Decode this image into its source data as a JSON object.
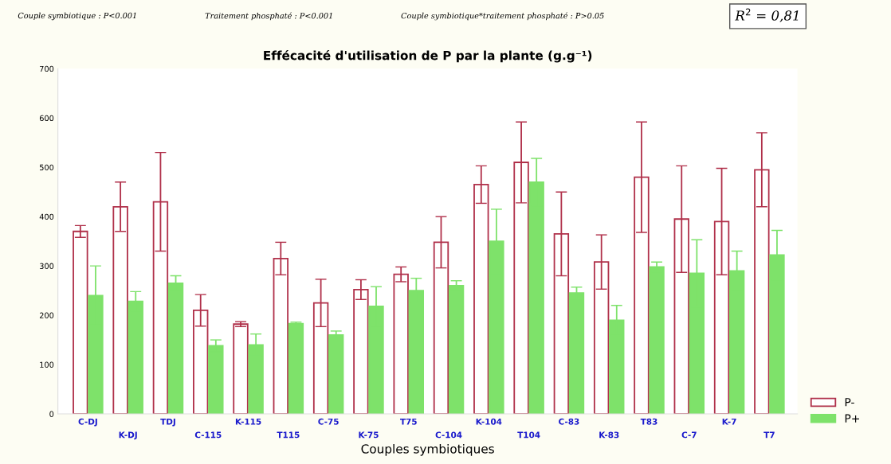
{
  "chart_data": {
    "type": "bar",
    "title": "Effécacité d'utilisation de P par la plante (g.g⁻¹)",
    "xlabel": "Couples symbiotiques",
    "annotations": [
      "Couple symbiotique : P<0.001",
      "Traitement phosphaté : P<0.001",
      "Couple symbiotique*traitement phosphaté : P>0.05",
      "R$^{2}$ = 0,81"
    ],
    "categories": [
      "C-DJ",
      "K-DJ",
      "TDJ",
      "C-115",
      "K-115",
      "T115",
      "C-75",
      "K-75",
      "T75",
      "C-104",
      "K-104",
      "T104",
      "C-83",
      "K-83",
      "T83",
      "C-7",
      "K-7",
      "T7"
    ],
    "series": [
      {
        "name": "P-",
        "color": "#b0304a",
        "values": [
          370,
          420,
          430,
          210,
          182,
          315,
          225,
          252,
          283,
          348,
          465,
          510,
          365,
          308,
          480,
          395,
          390,
          495
        ],
        "errors": [
          12,
          50,
          100,
          32,
          5,
          33,
          48,
          20,
          15,
          52,
          38,
          82,
          85,
          55,
          112,
          108,
          108,
          75
        ]
      },
      {
        "name": "P+",
        "color": "#7ee26a",
        "values": [
          240,
          228,
          265,
          138,
          140,
          183,
          160,
          218,
          250,
          260,
          350,
          470,
          245,
          190,
          298,
          285,
          290,
          322
        ],
        "errors": [
          60,
          20,
          15,
          12,
          22,
          3,
          8,
          40,
          25,
          10,
          65,
          48,
          12,
          30,
          10,
          68,
          40,
          50
        ]
      }
    ],
    "ylim": [
      0,
      700
    ],
    "yticks": [
      0,
      100,
      200,
      300,
      400,
      500,
      600,
      700
    ],
    "grid": false,
    "legend": "bottom right"
  }
}
